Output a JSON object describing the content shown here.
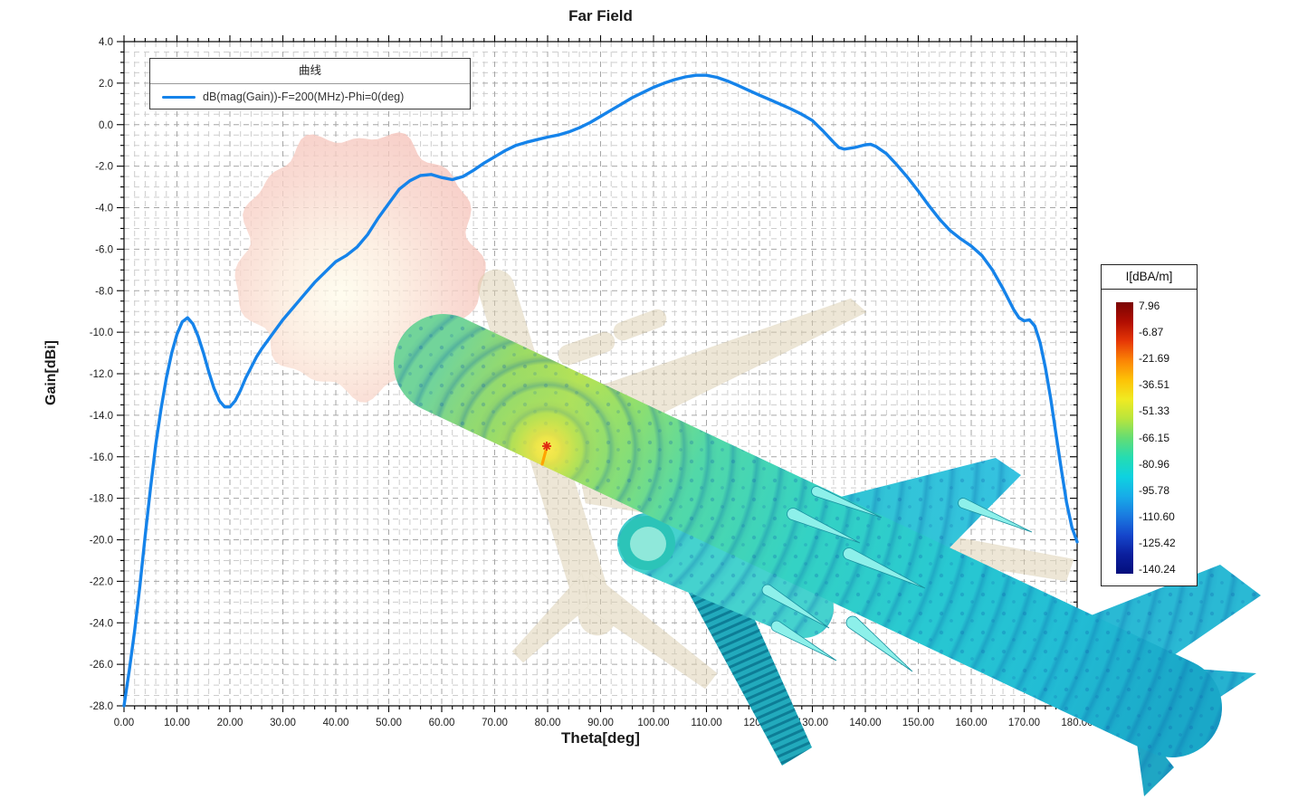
{
  "title": "Far Field",
  "axes": {
    "x": {
      "label": "Theta[deg]",
      "min": 0,
      "max": 180,
      "major_step": 10,
      "minor_step": 2,
      "decimals": 2
    },
    "y": {
      "label": "Gain[dBi]",
      "min": -28,
      "max": 4,
      "major_step": 2,
      "minor_step": 0.5,
      "decimals": 1
    }
  },
  "legend": {
    "title": "曲线",
    "entries": [
      {
        "label": "dB(mag(Gain))-F=200(MHz)-Phi=0(deg)",
        "color": "#1583ea"
      }
    ]
  },
  "colorbar": {
    "title": "I[dBA/m]",
    "labels": [
      "7.96",
      "-6.87",
      "-21.69",
      "-36.51",
      "-51.33",
      "-66.15",
      "-80.96",
      "-95.78",
      "-110.60",
      "-125.42",
      "-140.24"
    ],
    "gradient": [
      "#7a0403",
      "#b00d02",
      "#e63706",
      "#fb8405",
      "#fdc206",
      "#f0ea22",
      "#b9e53c",
      "#63dd74",
      "#25dcb2",
      "#0ed2e0",
      "#17ace8",
      "#1a7be0",
      "#1547cc",
      "#0b1f9e",
      "#030e7c"
    ]
  },
  "chart_data": {
    "type": "line",
    "title": "Far Field",
    "xlabel": "Theta[deg]",
    "ylabel": "Gain[dBi]",
    "xlim": [
      0,
      180
    ],
    "ylim": [
      -28,
      4
    ],
    "grid": true,
    "legend_position": "top-left",
    "series": [
      {
        "name": "dB(mag(Gain))-F=200(MHz)-Phi=0(deg)",
        "color": "#1583ea",
        "points": [
          [
            0,
            -28.0
          ],
          [
            1,
            -26.3
          ],
          [
            2,
            -24.4
          ],
          [
            3,
            -22.2
          ],
          [
            4,
            -19.8
          ],
          [
            5,
            -17.5
          ],
          [
            6,
            -15.4
          ],
          [
            7,
            -13.7
          ],
          [
            8,
            -12.2
          ],
          [
            9,
            -11.0
          ],
          [
            10,
            -10.1
          ],
          [
            11,
            -9.5
          ],
          [
            12,
            -9.3
          ],
          [
            13,
            -9.6
          ],
          [
            14,
            -10.2
          ],
          [
            15,
            -11.0
          ],
          [
            16,
            -11.9
          ],
          [
            17,
            -12.7
          ],
          [
            18,
            -13.3
          ],
          [
            19,
            -13.6
          ],
          [
            20,
            -13.6
          ],
          [
            21,
            -13.3
          ],
          [
            22,
            -12.8
          ],
          [
            23,
            -12.2
          ],
          [
            24,
            -11.7
          ],
          [
            25,
            -11.2
          ],
          [
            26,
            -10.8
          ],
          [
            28,
            -10.1
          ],
          [
            30,
            -9.4
          ],
          [
            32,
            -8.8
          ],
          [
            34,
            -8.2
          ],
          [
            36,
            -7.6
          ],
          [
            38,
            -7.1
          ],
          [
            40,
            -6.6
          ],
          [
            42,
            -6.3
          ],
          [
            44,
            -5.9
          ],
          [
            46,
            -5.3
          ],
          [
            48,
            -4.5
          ],
          [
            50,
            -3.8
          ],
          [
            52,
            -3.1
          ],
          [
            54,
            -2.7
          ],
          [
            56,
            -2.45
          ],
          [
            58,
            -2.4
          ],
          [
            60,
            -2.55
          ],
          [
            62,
            -2.65
          ],
          [
            64,
            -2.5
          ],
          [
            66,
            -2.2
          ],
          [
            68,
            -1.85
          ],
          [
            70,
            -1.55
          ],
          [
            72,
            -1.25
          ],
          [
            74,
            -1.0
          ],
          [
            76,
            -0.85
          ],
          [
            78,
            -0.72
          ],
          [
            80,
            -0.6
          ],
          [
            82,
            -0.5
          ],
          [
            84,
            -0.35
          ],
          [
            86,
            -0.15
          ],
          [
            88,
            0.1
          ],
          [
            90,
            0.4
          ],
          [
            92,
            0.7
          ],
          [
            94,
            1.0
          ],
          [
            96,
            1.3
          ],
          [
            98,
            1.55
          ],
          [
            100,
            1.8
          ],
          [
            102,
            2.0
          ],
          [
            104,
            2.17
          ],
          [
            106,
            2.3
          ],
          [
            108,
            2.38
          ],
          [
            110,
            2.38
          ],
          [
            112,
            2.28
          ],
          [
            114,
            2.1
          ],
          [
            116,
            1.88
          ],
          [
            118,
            1.65
          ],
          [
            120,
            1.42
          ],
          [
            122,
            1.2
          ],
          [
            124,
            0.98
          ],
          [
            126,
            0.75
          ],
          [
            128,
            0.5
          ],
          [
            130,
            0.2
          ],
          [
            132,
            -0.3
          ],
          [
            134,
            -0.85
          ],
          [
            135,
            -1.1
          ],
          [
            136,
            -1.18
          ],
          [
            138,
            -1.1
          ],
          [
            140,
            -0.97
          ],
          [
            141,
            -0.95
          ],
          [
            142,
            -1.05
          ],
          [
            144,
            -1.4
          ],
          [
            146,
            -1.95
          ],
          [
            148,
            -2.55
          ],
          [
            150,
            -3.2
          ],
          [
            152,
            -3.9
          ],
          [
            154,
            -4.55
          ],
          [
            156,
            -5.1
          ],
          [
            158,
            -5.5
          ],
          [
            160,
            -5.85
          ],
          [
            162,
            -6.3
          ],
          [
            164,
            -7.0
          ],
          [
            166,
            -7.9
          ],
          [
            168,
            -8.9
          ],
          [
            169,
            -9.3
          ],
          [
            170,
            -9.45
          ],
          [
            171,
            -9.4
          ],
          [
            172,
            -9.7
          ],
          [
            173,
            -10.5
          ],
          [
            174,
            -11.7
          ],
          [
            175,
            -13.2
          ],
          [
            176,
            -14.9
          ],
          [
            177,
            -16.6
          ],
          [
            178,
            -18.2
          ],
          [
            179,
            -19.4
          ],
          [
            180,
            -20.1
          ]
        ]
      }
    ]
  },
  "overlays": {
    "radiation_lobe_3d": {
      "fill": "#f4bab2",
      "glow": "#fffceb",
      "opacity": 0.78
    },
    "ghost_aircraft": {
      "fill": "#dccfae",
      "opacity": 0.5
    },
    "current_aircraft": {
      "colormap": "jet",
      "ring_color": "#0a5aa8",
      "nose_color": "#72d49a",
      "feed_glow_color": "#ffe94f",
      "body_color": "#28c8d2",
      "tail_color": "#1aa8c8",
      "feed_marker_color": "#e02a10"
    }
  }
}
